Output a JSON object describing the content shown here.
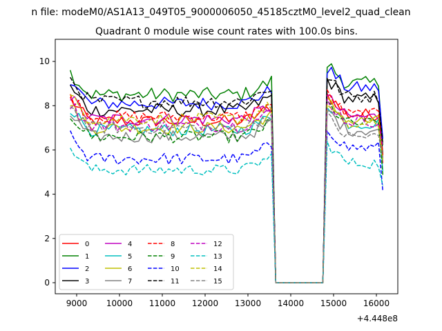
{
  "figure": {
    "suptitle": "n file: modeM0/AS1A13_049T05_9000006050_45185cztM0_level2_quad_clean",
    "title": "Quadrant 0 module wise count rates with 100.0s bins.",
    "offset_label": "+4.448e8"
  },
  "chart_data": {
    "type": "line",
    "title": "Quadrant 0 module wise count rates with 100.0s bins.",
    "xlabel": "",
    "ylabel": "",
    "x_offset": 444800000,
    "xlim": [
      8500,
      16500
    ],
    "ylim": [
      -0.5,
      11
    ],
    "xticks": [
      9000,
      10000,
      11000,
      12000,
      13000,
      14000,
      15000,
      16000
    ],
    "xtick_labels": [
      "9000",
      "10000",
      "11000",
      "12000",
      "13000",
      "14000",
      "15000",
      "16000"
    ],
    "yticks": [
      0,
      2,
      4,
      6,
      8,
      10
    ],
    "ytick_labels": [
      "0",
      "2",
      "4",
      "6",
      "8",
      "10"
    ],
    "grid": false,
    "legend_location": "lower-left",
    "legend_columns": 4,
    "series": [
      {
        "name": "0",
        "color": "#ff0000",
        "dash": "solid",
        "mean": 7.3,
        "noise": 0.28,
        "post": 7.6
      },
      {
        "name": "1",
        "color": "#008000",
        "dash": "solid",
        "mean": 8.5,
        "noise": 0.32,
        "post": 9.0
      },
      {
        "name": "2",
        "color": "#0000ff",
        "dash": "solid",
        "mean": 8.1,
        "noise": 0.3,
        "post": 8.8
      },
      {
        "name": "3",
        "color": "#000000",
        "dash": "solid",
        "mean": 7.8,
        "noise": 0.3,
        "post": 8.3
      },
      {
        "name": "4",
        "color": "#bf00bf",
        "dash": "solid",
        "mean": 7.4,
        "noise": 0.28,
        "post": 7.5
      },
      {
        "name": "5",
        "color": "#00bfbf",
        "dash": "solid",
        "mean": 6.9,
        "noise": 0.28,
        "post": 7.2
      },
      {
        "name": "6",
        "color": "#bfbf00",
        "dash": "solid",
        "mean": 7.0,
        "noise": 0.28,
        "post": 7.3
      },
      {
        "name": "7",
        "color": "#808080",
        "dash": "solid",
        "mean": 6.6,
        "noise": 0.28,
        "post": 6.9
      },
      {
        "name": "8",
        "color": "#ff0000",
        "dash": "dashed",
        "mean": 7.5,
        "noise": 0.28,
        "post": 7.6
      },
      {
        "name": "9",
        "color": "#008000",
        "dash": "dashed",
        "mean": 6.6,
        "noise": 0.28,
        "post": 7.2
      },
      {
        "name": "10",
        "color": "#0000ff",
        "dash": "dashed",
        "mean": 5.6,
        "noise": 0.28,
        "post": 6.1
      },
      {
        "name": "11",
        "color": "#000000",
        "dash": "dashed",
        "mean": 8.2,
        "noise": 0.3,
        "post": 8.4
      },
      {
        "name": "12",
        "color": "#bf00bf",
        "dash": "dashed",
        "mean": 7.1,
        "noise": 0.28,
        "post": 7.3
      },
      {
        "name": "13",
        "color": "#00bfbf",
        "dash": "dashed",
        "mean": 5.1,
        "noise": 0.25,
        "post": 5.4
      },
      {
        "name": "14",
        "color": "#bfbf00",
        "dash": "dashed",
        "mean": 7.4,
        "noise": 0.28,
        "post": 7.1
      },
      {
        "name": "15",
        "color": "#808080",
        "dash": "dashed",
        "mean": 7.0,
        "noise": 0.28,
        "post": 6.6
      }
    ],
    "segments": {
      "bin_width": 100,
      "active_1": [
        8850,
        13550
      ],
      "drop_end": 13650,
      "gap": [
        13650,
        14750
      ],
      "active_2": [
        14850,
        16150
      ],
      "gap_value": 0
    }
  }
}
